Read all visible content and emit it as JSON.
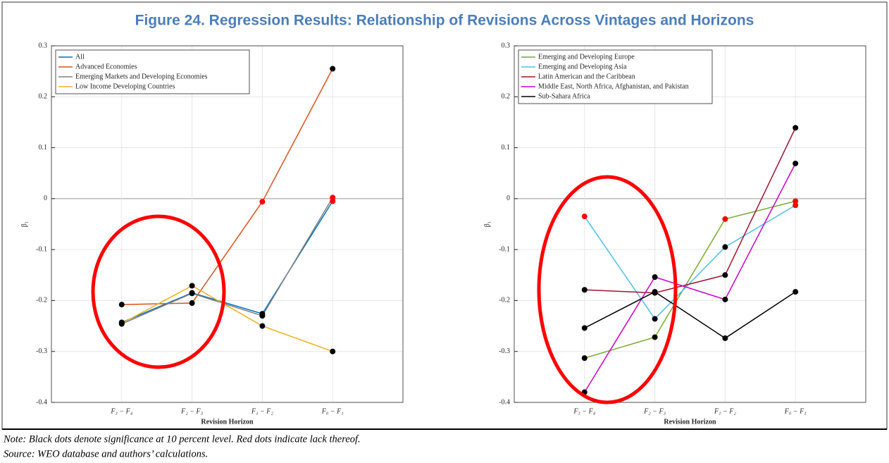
{
  "title": "Figure 24. Regression Results: Relationship of Revisions Across Vintages and Horizons",
  "note": "Note: Black dots denote significance at 10 percent level. Red dots indicate lack thereof.",
  "source": "Source: WEO database and authors’ calculations.",
  "chart_data": [
    {
      "type": "line",
      "x_label": "Revision Horizon",
      "y_label": "β₁",
      "categories": [
        "F₃ − F₄",
        "F₂ − F₃",
        "F₁ − F₂",
        "F₀ − F₁"
      ],
      "ylim": [
        -0.4,
        0.3
      ],
      "yticks": [
        -0.4,
        -0.3,
        -0.2,
        -0.1,
        0,
        0.1,
        0.2,
        0.3
      ],
      "grid": true,
      "legend": "upper left",
      "series": [
        {
          "name": "All",
          "color": "#0072bd",
          "values": [
            -0.243,
            -0.185,
            -0.226,
            -0.005
          ],
          "marker_colors": [
            "#000000",
            "#000000",
            "#000000",
            "#ff0000"
          ]
        },
        {
          "name": "Advanced Economies",
          "color": "#d95319",
          "values": [
            -0.208,
            -0.205,
            -0.006,
            0.255
          ],
          "marker_colors": [
            "#000000",
            "#000000",
            "#ff0000",
            "#000000"
          ]
        },
        {
          "name": "Emerging Markets and Developing Economies",
          "color": "#808080",
          "values": [
            -0.246,
            -0.186,
            -0.23,
            0.002
          ],
          "marker_colors": [
            "#000000",
            "#000000",
            "#000000",
            "#ff0000"
          ]
        },
        {
          "name": "Low Income Developing Countries",
          "color": "#edb120",
          "values": [
            -0.245,
            -0.171,
            -0.25,
            -0.3
          ],
          "marker_colors": [
            "#000000",
            "#000000",
            "#000000",
            "#000000"
          ]
        }
      ]
    },
    {
      "type": "line",
      "x_label": "Revision Horizon",
      "y_label": "β₁",
      "categories": [
        "F₃ − F₄",
        "F₂ − F₃",
        "F₁ − F₂",
        "F₀ − F₁"
      ],
      "ylim": [
        -0.4,
        0.3
      ],
      "yticks": [
        -0.4,
        -0.3,
        -0.2,
        -0.1,
        0,
        0.1,
        0.2,
        0.3
      ],
      "grid": true,
      "legend": "upper left",
      "series": [
        {
          "name": "Emerging and Developing Europe",
          "color": "#77ac30",
          "values": [
            -0.313,
            -0.272,
            -0.04,
            -0.005
          ],
          "marker_colors": [
            "#000000",
            "#000000",
            "#ff0000",
            "#ff0000"
          ]
        },
        {
          "name": "Emerging and Developing Asia",
          "color": "#4dbeee",
          "values": [
            -0.035,
            -0.236,
            -0.095,
            -0.013
          ],
          "marker_colors": [
            "#ff0000",
            "#000000",
            "#000000",
            "#ff0000"
          ]
        },
        {
          "name": "Latin American and the Caribbean",
          "color": "#a2142f",
          "values": [
            -0.179,
            -0.185,
            -0.15,
            0.139
          ],
          "marker_colors": [
            "#000000",
            "#000000",
            "#000000",
            "#000000"
          ]
        },
        {
          "name": "Middle East, North Africa, Afghanistan, and Pakistan",
          "color": "#cc00cc",
          "values": [
            -0.38,
            -0.154,
            -0.198,
            0.069
          ],
          "marker_colors": [
            "#000000",
            "#000000",
            "#000000",
            "#000000"
          ]
        },
        {
          "name": "Sub-Sahara Africa",
          "color": "#000000",
          "values": [
            -0.254,
            -0.183,
            -0.274,
            -0.183
          ],
          "marker_colors": [
            "#000000",
            "#000000",
            "#000000",
            "#000000"
          ]
        }
      ]
    }
  ]
}
